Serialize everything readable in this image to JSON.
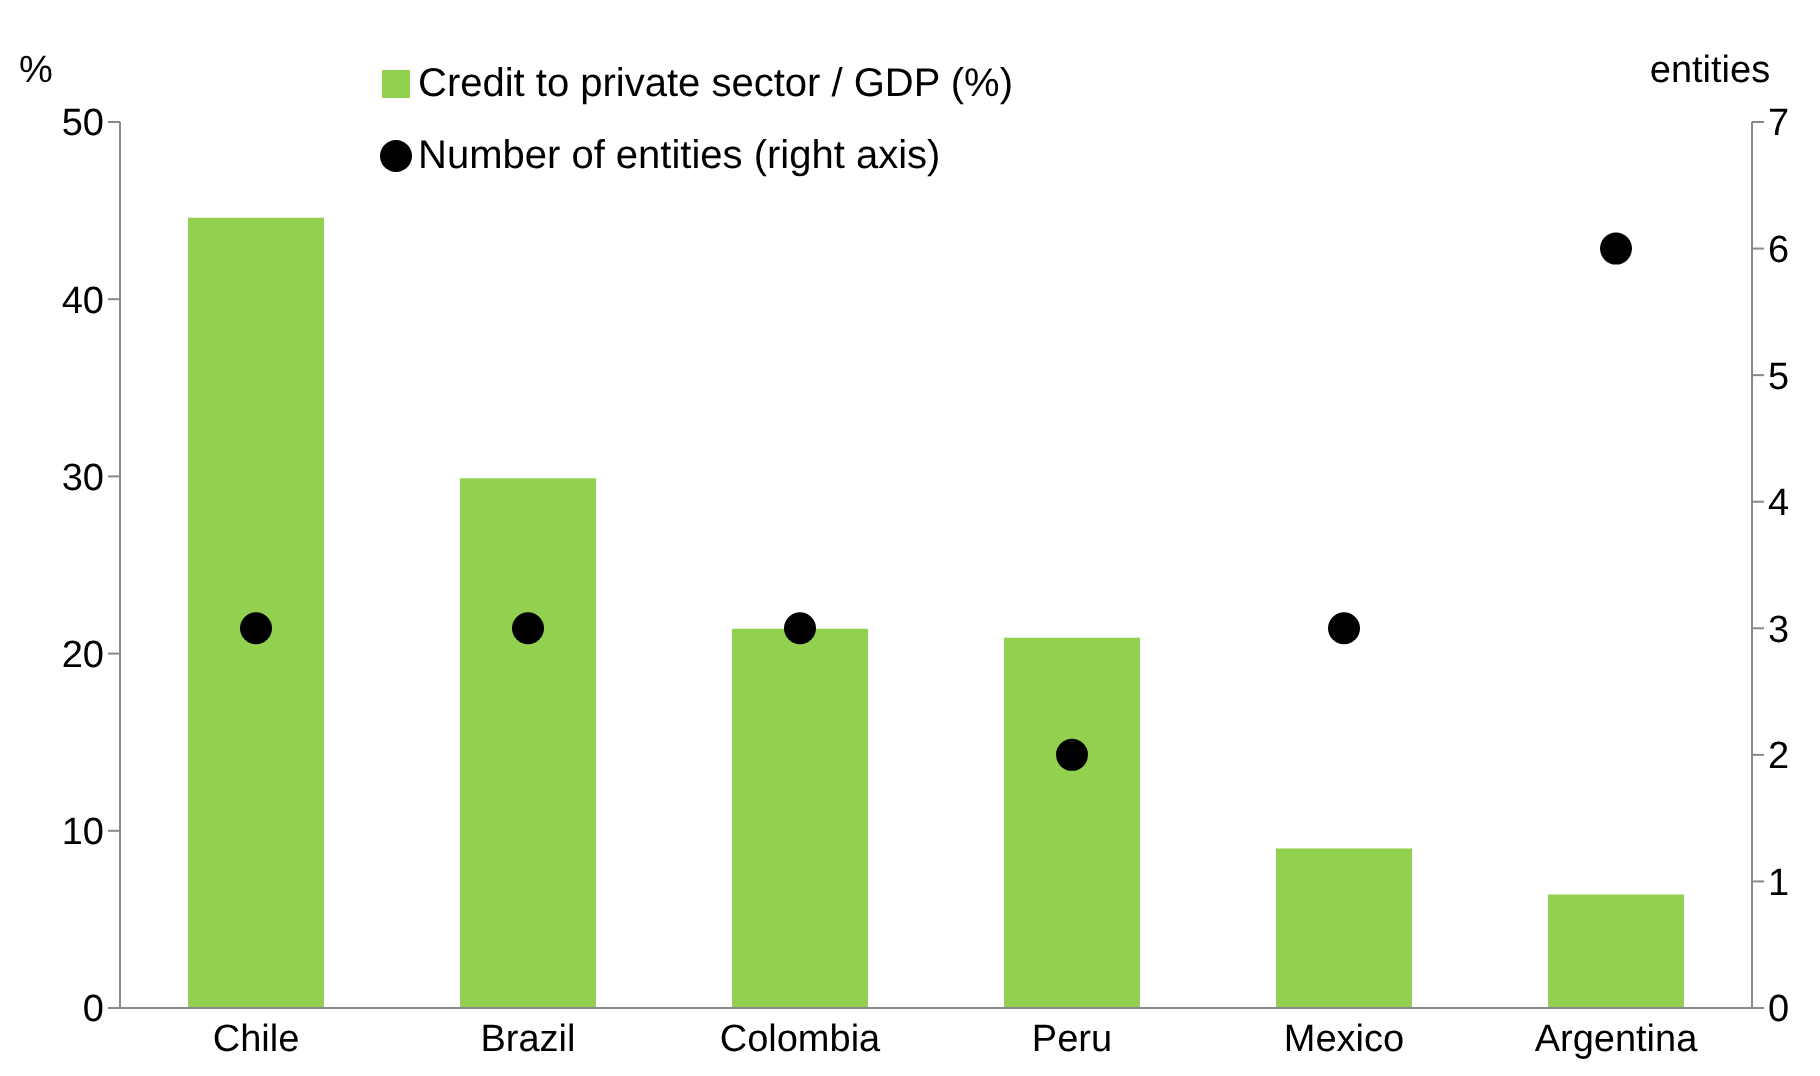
{
  "chart_data": {
    "type": "bar",
    "categories": [
      "Chile",
      "Brazil",
      "Colombia",
      "Peru",
      "Mexico",
      "Argentina"
    ],
    "ylabel": "%",
    "y2label": "entities",
    "ylim": [
      0,
      50
    ],
    "yticks": [
      0,
      10,
      20,
      30,
      40,
      50
    ],
    "y2lim": [
      0,
      7
    ],
    "y2ticks": [
      0,
      1,
      2,
      3,
      4,
      5,
      6,
      7
    ],
    "grid": false,
    "legend": "top",
    "series": [
      {
        "name": "Credit to private sector / GDP (%)",
        "color": "#92d050",
        "values": [
          44.6,
          29.9,
          21.4,
          20.9,
          9.0,
          6.4
        ]
      },
      {
        "name": "Number of entities (right axis)",
        "type": "scatter",
        "axis": "y2",
        "color": "#000000",
        "marker": "circle",
        "values": [
          3,
          3,
          3,
          2,
          3,
          6
        ]
      }
    ]
  }
}
